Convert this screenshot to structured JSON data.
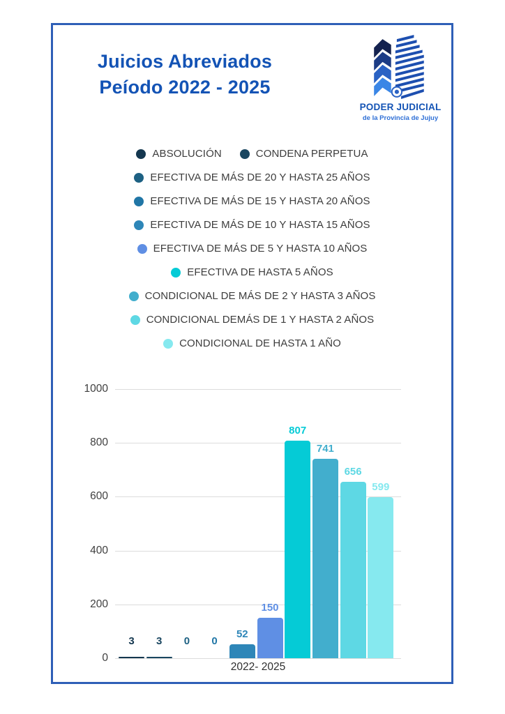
{
  "page": {
    "title_line1": "Juicios Abreviados",
    "title_line2": "Peíodo 2022 - 2025",
    "accent_color": "#1353b5",
    "frame_border_color": "#2e5fb7"
  },
  "logo": {
    "name": "PODER JUDICIAL",
    "subtitle": "de la Provincia de Jujuy",
    "icon": "judicial-building-icon",
    "colors": [
      "#14224f",
      "#1c3c86",
      "#2a62c4",
      "#3a86e6",
      "#1d4fb0"
    ]
  },
  "legend": {
    "rows": [
      [
        0,
        1
      ],
      [
        2
      ],
      [
        3
      ],
      [
        4
      ],
      [
        5
      ],
      [
        6
      ],
      [
        7
      ],
      [
        8
      ],
      [
        9
      ]
    ]
  },
  "chart_data": {
    "type": "bar",
    "title": "Juicios Abreviados Peíodo 2022 - 2025",
    "categories": [
      "ABSOLUCIÓN",
      "CONDENA PERPETUA",
      "EFECTIVA DE MÁS DE 20 Y HASTA 25 AÑOS",
      "EFECTIVA DE MÁS DE 15 Y HASTA 20 AÑOS",
      "EFECTIVA DE MÁS DE 10 Y HASTA 15 AÑOS",
      "EFECTIVA DE MÁS DE 5 Y HASTA 10 AÑOS",
      "EFECTIVA DE HASTA 5 AÑOS",
      "CONDICIONAL DE MÁS DE 2 Y HASTA 3 AÑOS",
      "CONDICIONAL DEMÁS DE 1 Y HASTA 2 AÑOS",
      "CONDICIONAL DE HASTA 1 AÑO"
    ],
    "values": [
      3,
      3,
      0,
      0,
      52,
      150,
      807,
      741,
      656,
      599
    ],
    "colors": [
      "#14374f",
      "#1a4660",
      "#1d6183",
      "#2076a6",
      "#2e86b8",
      "#5f8fe4",
      "#05cbd6",
      "#42aecd",
      "#5ed8e4",
      "#86e9ef"
    ],
    "xlabel": "2022- 2025",
    "ylabel": "",
    "ylim": [
      0,
      1000
    ],
    "yticks": [
      0,
      200,
      400,
      600,
      800,
      1000
    ],
    "grid": true,
    "legend_position": "top",
    "value_labels_shown": true
  }
}
